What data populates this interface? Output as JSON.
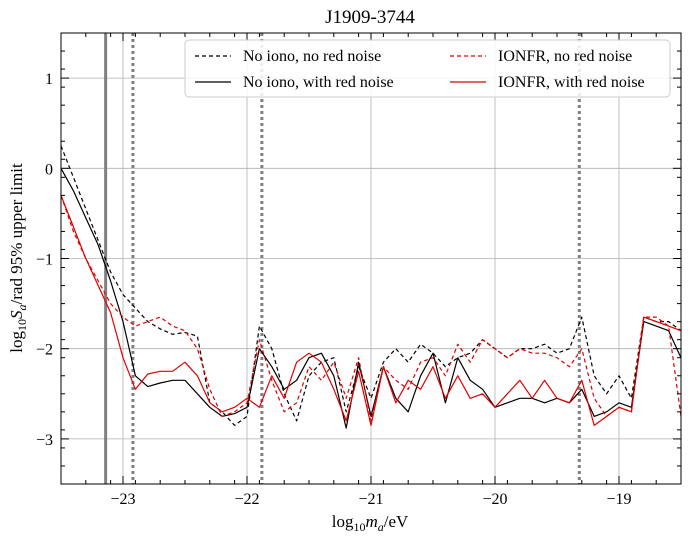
{
  "chart_data": {
    "type": "line",
    "title": "J1909-3744",
    "xlabel_prefix": "log",
    "xlabel_sub": "10",
    "xlabel_var": "m",
    "xlabel_var_sub": "a",
    "xlabel_suffix": "/eV",
    "ylabel_prefix": "log",
    "ylabel_sub": "10",
    "ylabel_var": "S",
    "ylabel_var_sub": "a",
    "ylabel_suffix": "/rad 95% upper limit",
    "xlim": [
      -23.5,
      -18.5
    ],
    "ylim": [
      -3.5,
      1.5
    ],
    "xticks": [
      -23,
      -22,
      -21,
      -20,
      -19
    ],
    "xtick_labels": [
      "−23",
      "−22",
      "−21",
      "−20",
      "−19"
    ],
    "yticks": [
      -3,
      -2,
      -1,
      0,
      1
    ],
    "ytick_labels": [
      "−3",
      "−2",
      "−1",
      "0",
      "1"
    ],
    "grid": true,
    "legend_placement": "top-right",
    "legend_columns": 2,
    "vertical_lines": [
      {
        "x": -23.14,
        "style": "solid",
        "color": "#808080"
      },
      {
        "x": -22.92,
        "style": "dotted",
        "color": "#808080"
      },
      {
        "x": -21.88,
        "style": "dotted",
        "color": "#808080"
      },
      {
        "x": -19.32,
        "style": "dotted",
        "color": "#808080"
      }
    ],
    "x": [
      -23.5,
      -23.4,
      -23.3,
      -23.2,
      -23.1,
      -23.0,
      -22.9,
      -22.8,
      -22.7,
      -22.6,
      -22.5,
      -22.4,
      -22.3,
      -22.2,
      -22.1,
      -22.0,
      -21.9,
      -21.8,
      -21.7,
      -21.6,
      -21.5,
      -21.4,
      -21.3,
      -21.2,
      -21.1,
      -21.0,
      -20.9,
      -20.8,
      -20.7,
      -20.6,
      -20.5,
      -20.4,
      -20.3,
      -20.2,
      -20.1,
      -20.0,
      -19.9,
      -19.8,
      -19.7,
      -19.6,
      -19.5,
      -19.4,
      -19.3,
      -19.2,
      -19.1,
      -19.0,
      -18.9,
      -18.8,
      -18.7,
      -18.6,
      -18.5
    ],
    "series": [
      {
        "name": "No iono, no red noise",
        "color": "#000000",
        "dash": "4,3",
        "values": [
          0.25,
          -0.1,
          -0.45,
          -0.8,
          -1.15,
          -1.4,
          -1.55,
          -1.7,
          -1.78,
          -1.84,
          -1.82,
          -1.86,
          -2.6,
          -2.7,
          -2.85,
          -2.75,
          -1.75,
          -2.0,
          -2.5,
          -2.8,
          -2.3,
          -2.15,
          -2.1,
          -2.7,
          -2.2,
          -2.55,
          -2.15,
          -2.0,
          -2.15,
          -1.95,
          -2.05,
          -2.2,
          -2.1,
          -2.05,
          -1.9,
          -2.0,
          -2.1,
          -2.0,
          -2.0,
          -1.95,
          -2.05,
          -2.0,
          -1.65,
          -2.3,
          -2.5,
          -2.3,
          -2.55,
          -1.65,
          -1.7,
          -1.7,
          -1.8
        ]
      },
      {
        "name": "No iono, with red noise",
        "color": "#000000",
        "dash": "",
        "values": [
          0.0,
          -0.25,
          -0.55,
          -0.85,
          -1.25,
          -1.7,
          -2.3,
          -2.42,
          -2.38,
          -2.35,
          -2.35,
          -2.5,
          -2.65,
          -2.75,
          -2.72,
          -2.65,
          -2.0,
          -2.2,
          -2.45,
          -2.35,
          -2.1,
          -2.05,
          -2.3,
          -2.88,
          -2.15,
          -2.75,
          -2.2,
          -2.55,
          -2.7,
          -2.3,
          -2.05,
          -2.6,
          -2.1,
          -2.35,
          -2.45,
          -2.65,
          -2.6,
          -2.55,
          -2.55,
          -2.6,
          -2.55,
          -2.6,
          -2.45,
          -2.75,
          -2.7,
          -2.6,
          -2.65,
          -1.7,
          -1.75,
          -1.8,
          -2.1
        ]
      },
      {
        "name": "IONFR, no red noise",
        "color": "#e00000",
        "dash": "4,3",
        "values": [
          -0.3,
          -0.7,
          -1.0,
          -1.25,
          -1.5,
          -1.65,
          -1.75,
          -1.7,
          -1.65,
          -1.75,
          -1.8,
          -2.0,
          -2.45,
          -2.75,
          -2.7,
          -2.6,
          -1.9,
          -2.35,
          -2.7,
          -2.6,
          -2.2,
          -2.35,
          -2.15,
          -2.55,
          -2.1,
          -2.8,
          -2.2,
          -2.35,
          -2.45,
          -2.15,
          -2.1,
          -2.3,
          -1.95,
          -2.15,
          -1.9,
          -2.0,
          -2.1,
          -2.0,
          -2.05,
          -2.05,
          -2.1,
          -2.2,
          -2.0,
          -2.55,
          -2.75,
          -2.65,
          -2.7,
          -1.65,
          -1.65,
          -1.75,
          -2.75
        ]
      },
      {
        "name": "IONFR, with red noise",
        "color": "#e00000",
        "dash": "",
        "values": [
          -0.3,
          -0.65,
          -1.0,
          -1.3,
          -1.6,
          -2.1,
          -2.45,
          -2.28,
          -2.25,
          -2.25,
          -2.15,
          -2.3,
          -2.6,
          -2.7,
          -2.65,
          -2.55,
          -2.65,
          -2.3,
          -2.55,
          -2.15,
          -2.05,
          -2.15,
          -2.45,
          -2.8,
          -2.25,
          -2.85,
          -2.2,
          -2.6,
          -2.35,
          -2.45,
          -2.2,
          -2.55,
          -2.3,
          -2.55,
          -2.5,
          -2.65,
          -2.5,
          -2.35,
          -2.55,
          -2.35,
          -2.55,
          -2.6,
          -2.35,
          -2.85,
          -2.75,
          -2.65,
          -2.7,
          -1.65,
          -1.7,
          -1.75,
          -1.8
        ]
      }
    ]
  }
}
